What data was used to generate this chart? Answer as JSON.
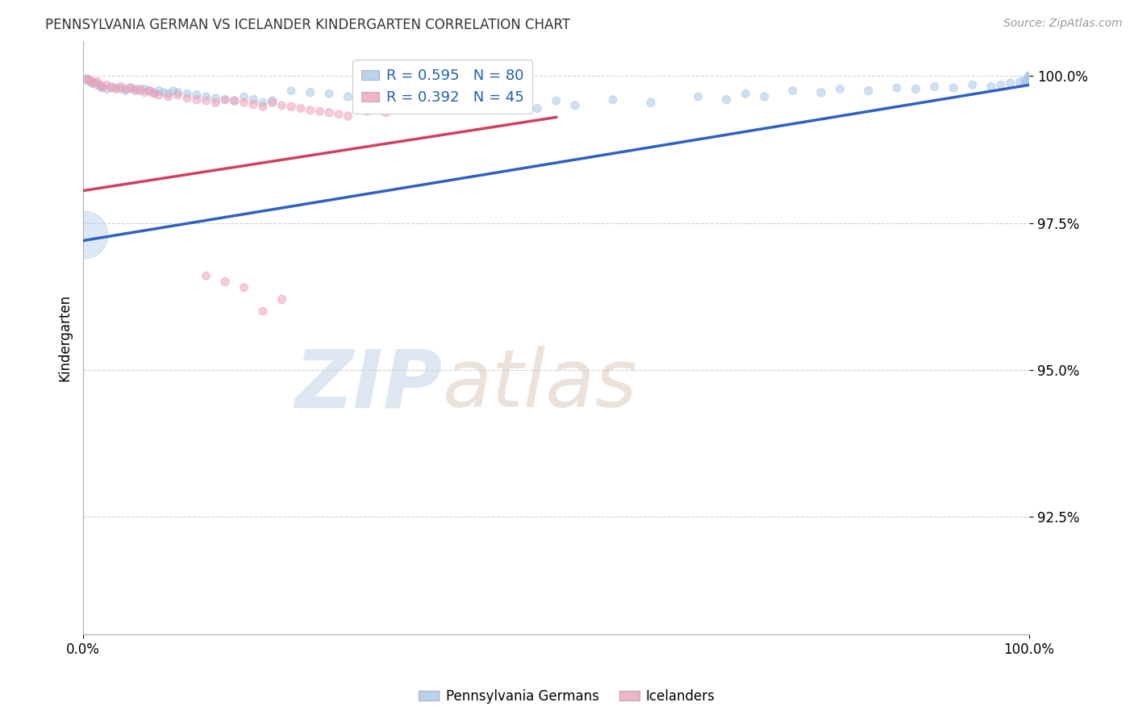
{
  "title": "PENNSYLVANIA GERMAN VS ICELANDER KINDERGARTEN CORRELATION CHART",
  "source_text": "Source: ZipAtlas.com",
  "ylabel": "Kindergarten",
  "y_tick_labels": [
    "92.5%",
    "95.0%",
    "97.5%",
    "100.0%"
  ],
  "y_tick_values": [
    0.925,
    0.95,
    0.975,
    1.0
  ],
  "x_min": 0.0,
  "x_max": 1.0,
  "y_min": 0.905,
  "y_max": 1.006,
  "legend_blue_label": "R = 0.595   N = 80",
  "legend_pink_label": "R = 0.392   N = 45",
  "blue_color": "#a8c8e8",
  "pink_color": "#f0a0b8",
  "blue_line_color": "#3060c0",
  "pink_line_color": "#d04060",
  "watermark_zip": "ZIP",
  "watermark_atlas": "atlas",
  "legend_label_blue": "Pennsylvania Germans",
  "legend_label_pink": "Icelanders",
  "blue_line_x0": 0.0,
  "blue_line_y0": 0.972,
  "blue_line_x1": 1.0,
  "blue_line_y1": 0.9985,
  "pink_line_x0": 0.0,
  "pink_line_y0": 0.9805,
  "pink_line_x1": 0.5,
  "pink_line_y1": 0.993,
  "blue_scatter_x": [
    0.003,
    0.005,
    0.008,
    0.01,
    0.012,
    0.015,
    0.018,
    0.02,
    0.025,
    0.03,
    0.035,
    0.04,
    0.045,
    0.05,
    0.055,
    0.06,
    0.065,
    0.07,
    0.075,
    0.08,
    0.085,
    0.09,
    0.095,
    0.1,
    0.11,
    0.12,
    0.13,
    0.14,
    0.15,
    0.16,
    0.17,
    0.18,
    0.19,
    0.2,
    0.22,
    0.24,
    0.26,
    0.28,
    0.3,
    0.32,
    0.34,
    0.36,
    0.38,
    0.4,
    0.42,
    0.44,
    0.46,
    0.48,
    0.5,
    0.52,
    0.56,
    0.6,
    0.65,
    0.68,
    0.7,
    0.72,
    0.75,
    0.78,
    0.8,
    0.83,
    0.86,
    0.88,
    0.9,
    0.92,
    0.94,
    0.96,
    0.97,
    0.98,
    0.99,
    0.995,
    0.997,
    0.999,
    1.0,
    1.0,
    1.0,
    1.0,
    1.0,
    1.0,
    1.0,
    1.0
  ],
  "blue_scatter_y": [
    0.9995,
    0.9992,
    0.999,
    0.9988,
    0.999,
    0.9985,
    0.9982,
    0.998,
    0.9978,
    0.9982,
    0.998,
    0.9978,
    0.9975,
    0.998,
    0.9978,
    0.9975,
    0.9978,
    0.9975,
    0.9972,
    0.9975,
    0.9972,
    0.997,
    0.9975,
    0.9972,
    0.997,
    0.9968,
    0.9965,
    0.9962,
    0.996,
    0.9958,
    0.9965,
    0.996,
    0.9955,
    0.9958,
    0.9975,
    0.9972,
    0.997,
    0.9965,
    0.9955,
    0.996,
    0.9958,
    0.9965,
    0.9952,
    0.996,
    0.9958,
    0.9955,
    0.995,
    0.9945,
    0.9958,
    0.995,
    0.996,
    0.9955,
    0.9965,
    0.996,
    0.997,
    0.9965,
    0.9975,
    0.9972,
    0.9978,
    0.9975,
    0.998,
    0.9978,
    0.9982,
    0.998,
    0.9985,
    0.9982,
    0.9985,
    0.9988,
    0.999,
    0.9992,
    0.9993,
    0.9995,
    0.9992,
    0.9994,
    0.9996,
    0.9998,
    0.9999,
    1.0,
    1.0,
    1.0
  ],
  "blue_scatter_size": [
    60,
    55,
    50,
    55,
    50,
    55,
    50,
    55,
    50,
    55,
    50,
    55,
    50,
    55,
    50,
    55,
    50,
    55,
    50,
    55,
    50,
    55,
    50,
    55,
    50,
    55,
    50,
    55,
    50,
    55,
    50,
    55,
    50,
    55,
    50,
    55,
    50,
    55,
    50,
    55,
    50,
    55,
    50,
    55,
    50,
    55,
    50,
    55,
    50,
    55,
    50,
    55,
    50,
    55,
    50,
    55,
    50,
    55,
    50,
    55,
    50,
    55,
    50,
    55,
    50,
    55,
    50,
    55,
    50,
    55,
    50,
    55,
    50,
    55,
    50,
    55,
    50,
    55,
    50,
    55
  ],
  "blue_big_x": [
    0.001
  ],
  "blue_big_y": [
    0.973
  ],
  "blue_big_size": [
    1800
  ],
  "pink_scatter_x": [
    0.005,
    0.008,
    0.01,
    0.015,
    0.018,
    0.02,
    0.025,
    0.03,
    0.035,
    0.04,
    0.045,
    0.05,
    0.055,
    0.06,
    0.065,
    0.07,
    0.075,
    0.08,
    0.09,
    0.1,
    0.11,
    0.12,
    0.13,
    0.14,
    0.15,
    0.16,
    0.17,
    0.18,
    0.19,
    0.2,
    0.21,
    0.22,
    0.23,
    0.24,
    0.25,
    0.26,
    0.27,
    0.28,
    0.3,
    0.32,
    0.19,
    0.21,
    0.17,
    0.15,
    0.13
  ],
  "pink_scatter_y": [
    0.9995,
    0.9992,
    0.9988,
    0.999,
    0.9985,
    0.9982,
    0.9985,
    0.998,
    0.9978,
    0.9982,
    0.9978,
    0.998,
    0.9975,
    0.9978,
    0.9972,
    0.9975,
    0.997,
    0.9968,
    0.9965,
    0.9968,
    0.9962,
    0.996,
    0.9958,
    0.9955,
    0.996,
    0.9958,
    0.9955,
    0.9952,
    0.9948,
    0.9955,
    0.995,
    0.9948,
    0.9945,
    0.9942,
    0.994,
    0.9938,
    0.9935,
    0.9932,
    0.994,
    0.9938,
    0.96,
    0.962,
    0.964,
    0.965,
    0.966
  ],
  "pink_scatter_size": [
    60,
    55,
    50,
    55,
    50,
    55,
    50,
    55,
    50,
    55,
    50,
    55,
    50,
    55,
    50,
    55,
    50,
    55,
    50,
    55,
    50,
    55,
    50,
    55,
    50,
    55,
    50,
    55,
    50,
    55,
    50,
    55,
    50,
    55,
    50,
    55,
    50,
    55,
    50,
    55,
    50,
    55,
    50,
    55,
    50
  ]
}
